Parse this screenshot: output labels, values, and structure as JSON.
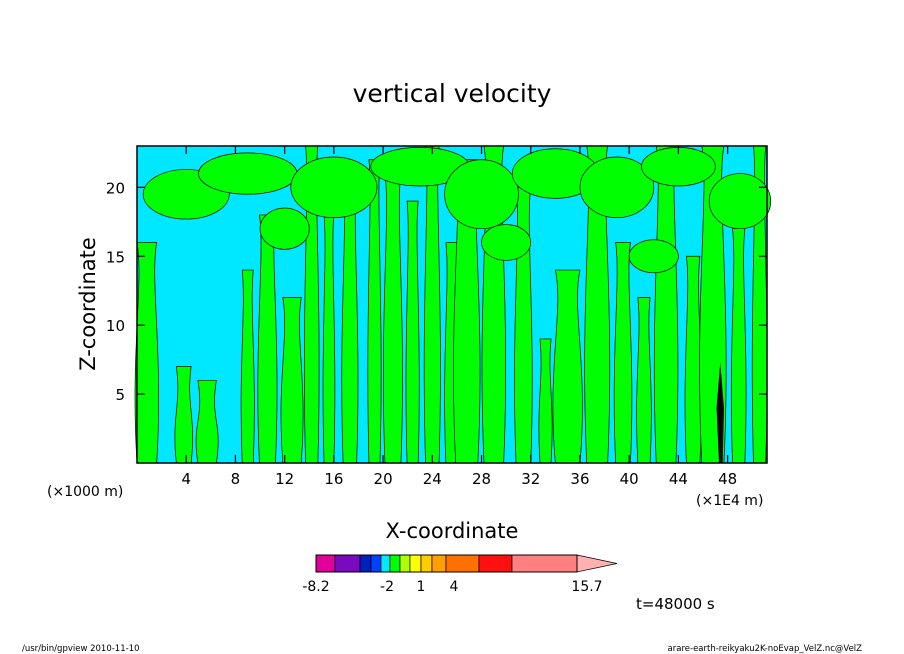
{
  "chart_data": {
    "type": "heatmap",
    "title": "vertical velocity",
    "xlabel": "X-coordinate",
    "ylabel": "Z-coordinate",
    "x_unit_left": "(×1000 m)",
    "x_unit_right": "(×1E4 m)",
    "x_ticks": [
      "4",
      "8",
      "12",
      "16",
      "20",
      "24",
      "28",
      "32",
      "36",
      "40",
      "44",
      "48"
    ],
    "y_ticks": [
      "5",
      "10",
      "15",
      "20"
    ],
    "xlim": [
      0,
      51.2
    ],
    "ylim": [
      0,
      23
    ],
    "colorbar": {
      "tick_labels": [
        "-8.2",
        "-2",
        "1",
        "4",
        "15.7"
      ],
      "colors": [
        "#e0009a",
        "#7a0abf",
        "#001fbf",
        "#0040ff",
        "#00e8ff",
        "#00ff00",
        "#b0ff00",
        "#ffff00",
        "#ffcc00",
        "#ffa000",
        "#ff7000",
        "#ff1010",
        "#ff8080",
        "#ffb0b0"
      ],
      "segment_bounds": [
        -8.2,
        -6,
        -4,
        -3,
        -2,
        -1,
        0,
        1,
        2,
        3,
        4,
        7,
        10,
        15.7
      ]
    },
    "field_levels": {
      "negative_color": "#00e8ff",
      "positive_color": "#00ff00",
      "strong_updraft_color": "#000000"
    },
    "annotation_time": "t=48000 s"
  },
  "footer": {
    "left": "/usr/bin/gpview   2010-11-10",
    "right": "arare-earth-reikyaku2K-noEvap_VelZ.nc@VelZ"
  }
}
